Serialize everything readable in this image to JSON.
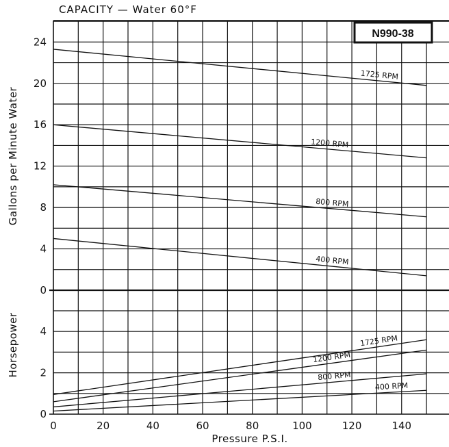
{
  "chart_data": [
    {
      "type": "line",
      "title": "CAPACITY  —  Water 60°F",
      "model_badge": "N990-38",
      "ylabel": "Gallons per Minute Water",
      "xlabel": "Pressure P.S.I.",
      "xlim": [
        0,
        150
      ],
      "ylim": [
        0,
        26
      ],
      "x_ticks": [
        0,
        20,
        40,
        60,
        80,
        100,
        120,
        140
      ],
      "y_ticks": [
        0,
        4,
        8,
        12,
        16,
        20,
        24
      ],
      "grid": true,
      "series": [
        {
          "name": "1725 RPM",
          "x": [
            0,
            150
          ],
          "y": [
            23.3,
            19.8
          ]
        },
        {
          "name": "1200 RPM",
          "x": [
            0,
            150
          ],
          "y": [
            16.0,
            12.8
          ]
        },
        {
          "name": "800 RPM",
          "x": [
            0,
            150
          ],
          "y": [
            10.2,
            7.1
          ]
        },
        {
          "name": "400 RPM",
          "x": [
            0,
            150
          ],
          "y": [
            5.0,
            1.4
          ]
        }
      ]
    },
    {
      "type": "line",
      "ylabel": "Horsepower",
      "xlabel": "Pressure P.S.I.",
      "xlim": [
        0,
        150
      ],
      "ylim": [
        0,
        6
      ],
      "x_ticks": [
        0,
        20,
        40,
        60,
        80,
        100,
        120,
        140
      ],
      "y_ticks": [
        0,
        2,
        4
      ],
      "grid": true,
      "series": [
        {
          "name": "1725 RPM",
          "x": [
            0,
            150
          ],
          "y": [
            0.95,
            3.6
          ]
        },
        {
          "name": "1200 RPM",
          "x": [
            0,
            150
          ],
          "y": [
            0.6,
            3.1
          ]
        },
        {
          "name": "800 RPM",
          "x": [
            0,
            150
          ],
          "y": [
            0.35,
            1.95
          ]
        },
        {
          "name": "400 RPM",
          "x": [
            0,
            150
          ],
          "y": [
            0.15,
            1.15
          ]
        }
      ]
    }
  ]
}
